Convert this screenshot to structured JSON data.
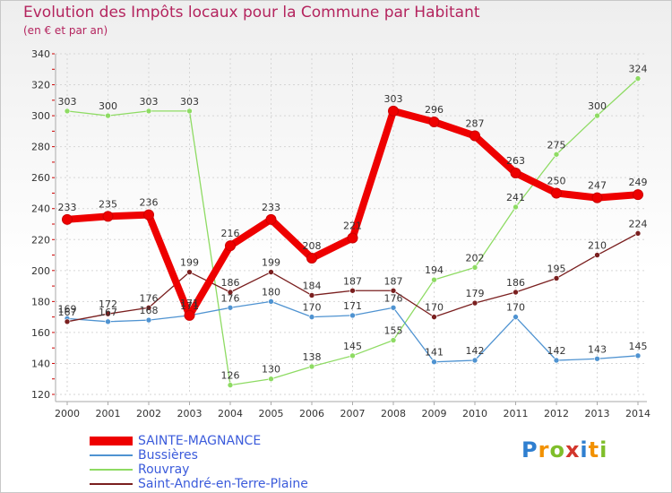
{
  "chart_data": {
    "type": "line",
    "title": "Evolution des Impôts locaux pour la Commune par Habitant",
    "subtitle": "(en € et par an)",
    "x": [
      "2000",
      "2001",
      "2002",
      "2003",
      "2004",
      "2005",
      "2006",
      "2007",
      "2008",
      "2009",
      "2010",
      "2011",
      "2012",
      "2013",
      "2014"
    ],
    "ylim": [
      120,
      340
    ],
    "yticks": [
      120,
      140,
      160,
      180,
      200,
      220,
      240,
      260,
      280,
      300,
      320,
      340
    ],
    "grid": true,
    "legend_position": "bottom-left",
    "series": [
      {
        "name": "SAINTE-MAGNANCE",
        "color": "#ee0000",
        "values": [
          233,
          235,
          236,
          171,
          216,
          233,
          208,
          221,
          303,
          296,
          287,
          263,
          250,
          247,
          249
        ]
      },
      {
        "name": "Bussières",
        "color": "#4f93d1",
        "values": [
          169,
          167,
          168,
          171,
          176,
          180,
          170,
          171,
          176,
          141,
          142,
          170,
          142,
          143,
          145
        ]
      },
      {
        "name": "Rouvray",
        "color": "#8edb63",
        "values": [
          303,
          300,
          303,
          303,
          126,
          130,
          138,
          145,
          155,
          194,
          202,
          241,
          275,
          300,
          324
        ]
      },
      {
        "name": "Saint-André-en-Terre-Plaine",
        "color": "#7a1f1f",
        "values": [
          167,
          172,
          176,
          199,
          186,
          199,
          184,
          187,
          187,
          170,
          179,
          186,
          195,
          210,
          224
        ]
      }
    ]
  },
  "legend": [
    {
      "label": "SAINTE-MAGNANCE",
      "color": "#ee0000",
      "text_color": "#3b5bdb"
    },
    {
      "label": "Bussières",
      "color": "#4f93d1",
      "text_color": "#3b5bdb"
    },
    {
      "label": "Rouvray",
      "color": "#8edb63",
      "text_color": "#3b5bdb"
    },
    {
      "label": "Saint-André-en-Terre-Plaine",
      "color": "#7a1f1f",
      "text_color": "#3b5bdb"
    }
  ],
  "logo": {
    "p": "P",
    "r": "r",
    "o": "o",
    "x": "x",
    "i": "i",
    "t": "t",
    "i2": "i"
  }
}
